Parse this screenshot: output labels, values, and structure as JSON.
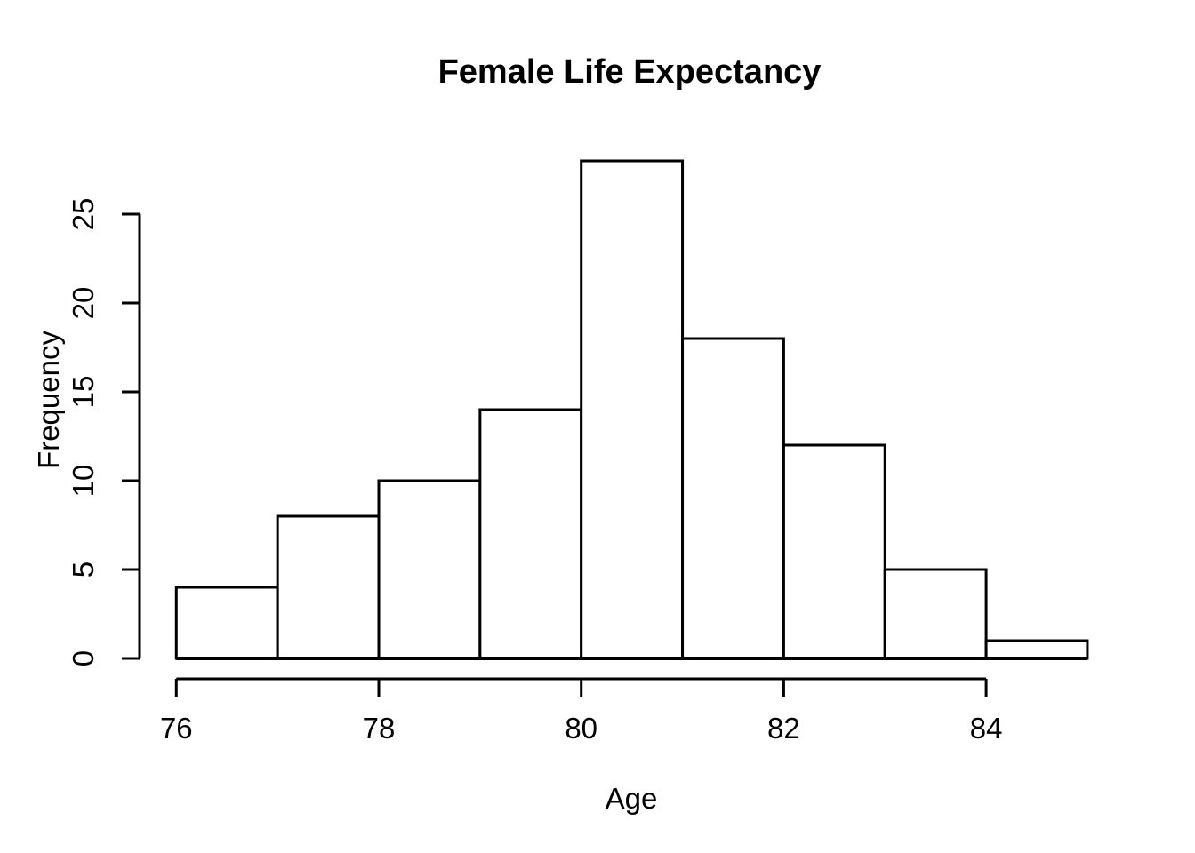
{
  "chart_data": {
    "type": "bar",
    "chart_kind": "histogram",
    "title": "Female Life Expectancy",
    "xlabel": "Age",
    "ylabel": "Frequency",
    "bin_edges": [
      76,
      77,
      78,
      79,
      80,
      81,
      82,
      83,
      84,
      85
    ],
    "counts": [
      4,
      8,
      10,
      14,
      28,
      18,
      12,
      5,
      1
    ],
    "x_ticks": [
      76,
      78,
      80,
      82,
      84
    ],
    "y_ticks": [
      0,
      5,
      10,
      15,
      20,
      25
    ],
    "xlim": [
      76,
      85
    ],
    "ylim": [
      0,
      28
    ],
    "grid": false,
    "legend": false,
    "colors": {
      "background": "#ffffff",
      "bar_fill": "#ffffff",
      "bar_stroke": "#000000",
      "axis": "#000000",
      "text": "#000000"
    }
  }
}
